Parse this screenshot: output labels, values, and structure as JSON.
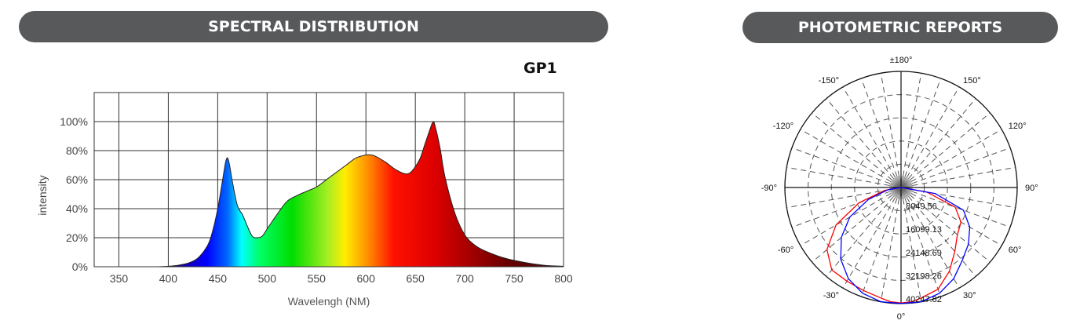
{
  "spectral": {
    "banner": "SPECTRAL DISTRIBUTION",
    "model": "GP1",
    "chart_data": {
      "type": "area",
      "xlabel": "Wavelengh (NM)",
      "ylabel": "intensity",
      "xlim": [
        325,
        800
      ],
      "ylim": [
        0,
        120
      ],
      "x_ticks": [
        350,
        400,
        450,
        500,
        550,
        600,
        650,
        700,
        750,
        800
      ],
      "y_ticks": [
        0,
        20,
        40,
        60,
        80,
        100
      ],
      "y_tick_labels": [
        "0%",
        "20%",
        "40%",
        "60%",
        "80%",
        "100%"
      ],
      "grid": true,
      "x": [
        390,
        400,
        410,
        420,
        430,
        440,
        445,
        450,
        455,
        458,
        460,
        462,
        465,
        470,
        475,
        480,
        485,
        490,
        495,
        500,
        505,
        510,
        520,
        530,
        540,
        550,
        560,
        570,
        580,
        590,
        600,
        605,
        610,
        620,
        630,
        640,
        645,
        650,
        655,
        660,
        665,
        668,
        670,
        675,
        680,
        690,
        700,
        710,
        720,
        740,
        760,
        780,
        800
      ],
      "y": [
        0,
        0.3,
        1,
        2.5,
        6,
        15,
        25,
        40,
        60,
        72,
        75,
        70,
        58,
        42,
        36,
        28,
        21,
        20,
        21,
        26,
        31,
        36,
        45,
        49,
        52,
        55,
        60,
        65,
        70,
        75,
        77,
        77,
        76,
        72,
        67,
        64,
        65,
        69,
        75,
        85,
        95,
        100,
        97,
        82,
        62,
        37,
        22,
        15,
        11,
        6,
        3,
        1,
        0.3
      ]
    }
  },
  "photometric": {
    "banner": "PHOTOMETRIC REPORTS",
    "chart_data": {
      "type": "polar",
      "angle_labels": [
        "±180°",
        "-150°",
        "150°",
        "-120°",
        "120°",
        "-90°",
        "90°",
        "-60°",
        "60°",
        "-30°",
        "30°",
        "0°"
      ],
      "radial_labels": [
        "8049.56",
        "16099.13",
        "24148.69",
        "32198.26",
        "40247.82"
      ],
      "r_max": 40247.82,
      "series": [
        {
          "color": "#ff0000",
          "angles": [
            -90,
            -80,
            -70,
            -60,
            -50,
            -40,
            -30,
            -20,
            -10,
            -5,
            0,
            5,
            10,
            20,
            30,
            40,
            50,
            60,
            70,
            80,
            90
          ],
          "values": [
            0,
            5800,
            15500,
            26000,
            33500,
            37300,
            37500,
            38000,
            39000,
            39800,
            40000,
            39800,
            39000,
            37500,
            33500,
            29000,
            25500,
            24000,
            20000,
            9000,
            0
          ]
        },
        {
          "color": "#0000ff",
          "angles": [
            -90,
            -80,
            -70,
            -60,
            -50,
            -40,
            -30,
            -20,
            -10,
            0,
            10,
            20,
            30,
            40,
            50,
            60,
            70,
            80,
            90
          ],
          "values": [
            0,
            4700,
            12000,
            20500,
            27000,
            32500,
            36500,
            39000,
            40200,
            40200,
            40200,
            39000,
            36500,
            33000,
            30500,
            27500,
            23000,
            12000,
            0
          ]
        }
      ]
    }
  }
}
